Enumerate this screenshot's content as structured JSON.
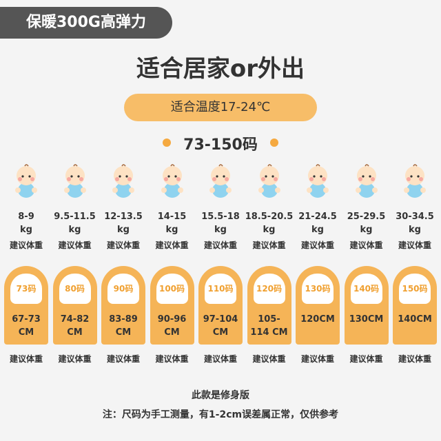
{
  "badge": "保暖300G高弹力",
  "title": "适合居家or外出",
  "temperature": "适合温度17-24℃",
  "size_range": "73-150码",
  "sizes": [
    {
      "weight": "8-9",
      "weight_unit": "kg",
      "weight_label": "建议体重",
      "size": "73码",
      "height": "67-73 CM",
      "height_label": "建议体重"
    },
    {
      "weight": "9.5-11.5",
      "weight_unit": "kg",
      "weight_label": "建议体重",
      "size": "80码",
      "height": "74-82 CM",
      "height_label": "建议体重"
    },
    {
      "weight": "12-13.5",
      "weight_unit": "kg",
      "weight_label": "建议体重",
      "size": "90码",
      "height": "83-89 CM",
      "height_label": "建议体重"
    },
    {
      "weight": "14-15",
      "weight_unit": "kg",
      "weight_label": "建议体重",
      "size": "100码",
      "height": "90-96 CM",
      "height_label": "建议体重"
    },
    {
      "weight": "15.5-18",
      "weight_unit": "kg",
      "weight_label": "建议体重",
      "size": "110码",
      "height": "97-104 CM",
      "height_label": "建议体重"
    },
    {
      "weight": "18.5-20.5",
      "weight_unit": "kg",
      "weight_label": "建议体重",
      "size": "120码",
      "height": "105-114 CM",
      "height_label": "建议体重"
    },
    {
      "weight": "21-24.5",
      "weight_unit": "kg",
      "weight_label": "建议体重",
      "size": "130码",
      "height": "120CM",
      "height_label": "建议体重"
    },
    {
      "weight": "25-29.5",
      "weight_unit": "kg",
      "weight_label": "建议体重",
      "size": "140码",
      "height": "130CM",
      "height_label": "建议体重"
    },
    {
      "weight": "30-34.5",
      "weight_unit": "kg",
      "weight_label": "建议体重",
      "size": "150码",
      "height": "140CM",
      "height_label": "建议体重"
    }
  ],
  "note_title": "此款是修身版",
  "note": "注：尺码为手工测量，有1-2cm误差属正常，仅供参考"
}
